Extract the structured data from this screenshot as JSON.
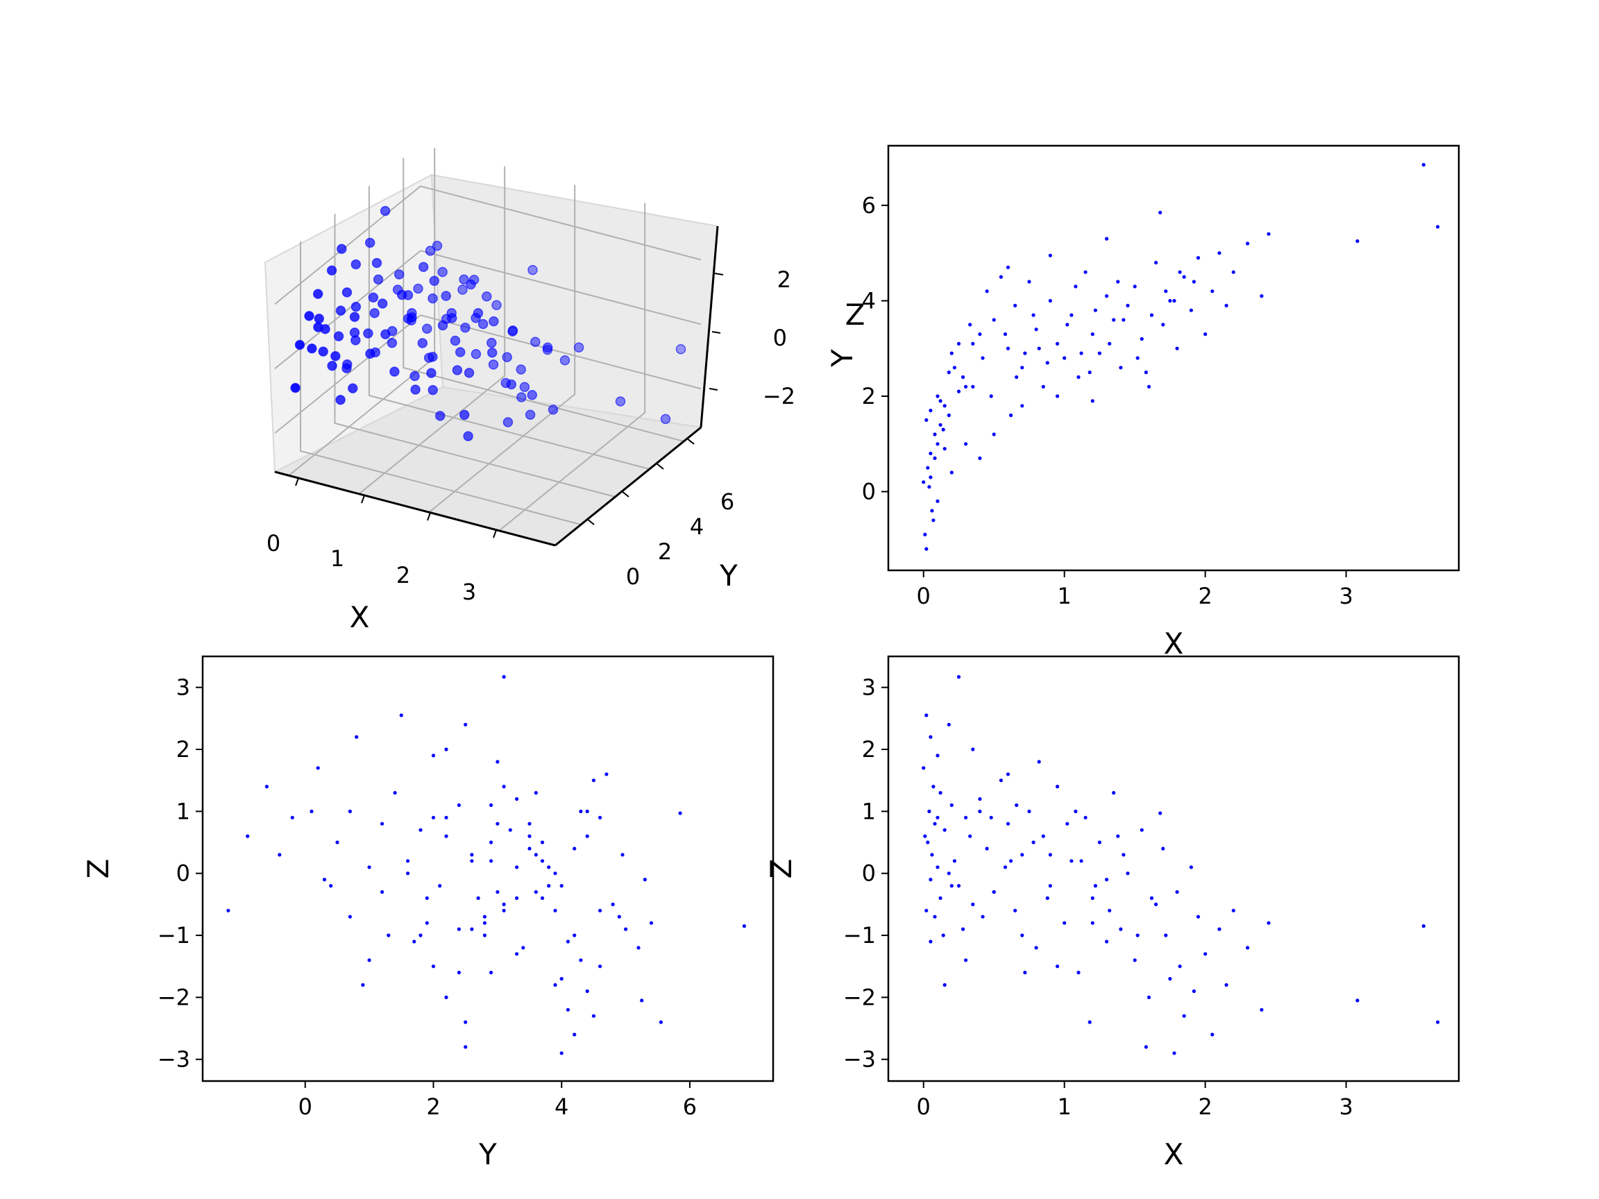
{
  "figure": {
    "marker_color": "#0000ff",
    "axis_color": "#000000",
    "pane_color": "#f2f2f2",
    "grid_color": "#b0b0b0"
  },
  "chart_data": [
    {
      "id": "scatter3d",
      "type": "scatter",
      "projection": "3d",
      "xlabel": "X",
      "ylabel": "Y",
      "zlabel": "Z",
      "xticks": [
        "0",
        "1",
        "2",
        "3"
      ],
      "yticks": [
        "0",
        "2",
        "4",
        "6"
      ],
      "zticks": [
        "−2",
        "0",
        "2"
      ],
      "xlim": [
        -0.2,
        3.8
      ],
      "ylim": [
        -1.5,
        7.0
      ],
      "zlim": [
        -3.2,
        3.3
      ],
      "grid": true,
      "series": [
        {
          "source": "points3d"
        }
      ]
    },
    {
      "id": "xy",
      "type": "scatter",
      "xlabel": "X",
      "ylabel": "Y",
      "xticks": [
        0,
        1,
        2,
        3
      ],
      "yticks": [
        0,
        2,
        4,
        6
      ],
      "xlim": [
        -0.25,
        3.8
      ],
      "ylim": [
        -1.65,
        7.25
      ],
      "grid": false,
      "series": [
        {
          "source": "points3d",
          "x": "x",
          "y": "y"
        }
      ]
    },
    {
      "id": "yz",
      "type": "scatter",
      "xlabel": "Y",
      "ylabel": "Z",
      "xticks": [
        0,
        2,
        4,
        6
      ],
      "yticks": [
        -3,
        -2,
        -1,
        0,
        1,
        2,
        3
      ],
      "xlim": [
        -1.6,
        7.3
      ],
      "ylim": [
        -3.35,
        3.5
      ],
      "grid": false,
      "series": [
        {
          "source": "points3d",
          "x": "y",
          "y": "z"
        }
      ]
    },
    {
      "id": "xz",
      "type": "scatter",
      "xlabel": "X",
      "ylabel": "Z",
      "xticks": [
        0,
        1,
        2,
        3
      ],
      "yticks": [
        -3,
        -2,
        -1,
        0,
        1,
        2,
        3
      ],
      "xlim": [
        -0.25,
        3.8
      ],
      "ylim": [
        -3.35,
        3.5
      ],
      "grid": false,
      "series": [
        {
          "source": "points3d",
          "x": "x",
          "y": "z"
        }
      ]
    }
  ],
  "points3d": [
    [
      0.02,
      1.5,
      2.55
    ],
    [
      0.05,
      0.8,
      2.2
    ],
    [
      0.1,
      2.0,
      1.9
    ],
    [
      0.0,
      0.2,
      1.7
    ],
    [
      0.12,
      1.4,
      1.3
    ],
    [
      0.2,
      2.9,
      1.1
    ],
    [
      0.04,
      0.1,
      1.0
    ],
    [
      0.3,
      2.2,
      0.9
    ],
    [
      0.08,
      1.2,
      0.8
    ],
    [
      0.15,
      1.8,
      0.7
    ],
    [
      0.01,
      -0.9,
      0.6
    ],
    [
      0.03,
      0.5,
      0.5
    ],
    [
      0.06,
      -0.4,
      0.3
    ],
    [
      0.22,
      2.6,
      0.2
    ],
    [
      0.1,
      1.0,
      0.1
    ],
    [
      0.18,
      1.6,
      0.0
    ],
    [
      0.05,
      0.3,
      -0.1
    ],
    [
      0.25,
      2.1,
      -0.2
    ],
    [
      0.12,
      1.9,
      -0.4
    ],
    [
      0.35,
      3.1,
      -0.5
    ],
    [
      0.02,
      -1.2,
      -0.6
    ],
    [
      0.08,
      0.7,
      -0.7
    ],
    [
      0.28,
      2.4,
      -0.9
    ],
    [
      0.14,
      1.3,
      -1.0
    ],
    [
      0.4,
      3.3,
      1.2
    ],
    [
      0.45,
      4.2,
      0.4
    ],
    [
      0.5,
      3.6,
      -0.3
    ],
    [
      0.55,
      4.5,
      1.5
    ],
    [
      0.6,
      3.0,
      0.8
    ],
    [
      0.65,
      3.9,
      -0.6
    ],
    [
      0.7,
      2.6,
      0.3
    ],
    [
      0.75,
      4.4,
      1.0
    ],
    [
      0.8,
      3.4,
      -1.2
    ],
    [
      0.85,
      2.2,
      0.6
    ],
    [
      0.9,
      4.0,
      -0.2
    ],
    [
      0.95,
      3.1,
      1.4
    ],
    [
      1.0,
      2.8,
      -0.8
    ],
    [
      1.05,
      3.7,
      0.2
    ],
    [
      1.1,
      2.4,
      -1.6
    ],
    [
      1.15,
      4.6,
      0.9
    ],
    [
      1.2,
      3.3,
      -0.4
    ],
    [
      1.25,
      2.9,
      0.5
    ],
    [
      1.3,
      4.1,
      -1.1
    ],
    [
      1.35,
      3.6,
      1.3
    ],
    [
      1.4,
      2.6,
      -0.9
    ],
    [
      1.45,
      3.9,
      0.0
    ],
    [
      1.5,
      4.3,
      -1.4
    ],
    [
      1.55,
      3.2,
      0.7
    ],
    [
      1.6,
      2.2,
      -2.0
    ],
    [
      1.65,
      4.8,
      -0.5
    ],
    [
      1.7,
      3.5,
      0.4
    ],
    [
      1.75,
      4.0,
      -1.7
    ],
    [
      1.8,
      3.0,
      -0.3
    ],
    [
      1.85,
      4.5,
      -2.3
    ],
    [
      1.9,
      3.8,
      0.1
    ],
    [
      1.95,
      4.9,
      -0.7
    ],
    [
      2.0,
      3.3,
      -1.3
    ],
    [
      2.05,
      4.2,
      -2.6
    ],
    [
      2.1,
      5.0,
      -0.9
    ],
    [
      2.15,
      3.9,
      -1.8
    ],
    [
      2.2,
      4.6,
      -0.6
    ],
    [
      2.3,
      5.2,
      -1.2
    ],
    [
      2.4,
      4.1,
      -2.2
    ],
    [
      2.45,
      5.4,
      -0.8
    ],
    [
      1.68,
      5.85,
      0.97
    ],
    [
      1.3,
      5.3,
      -0.1
    ],
    [
      0.9,
      4.95,
      0.3
    ],
    [
      0.6,
      4.7,
      1.6
    ],
    [
      3.08,
      5.25,
      -2.05
    ],
    [
      3.55,
      6.85,
      -0.85
    ],
    [
      3.65,
      5.55,
      -2.4
    ],
    [
      0.25,
      3.1,
      3.17
    ],
    [
      0.35,
      2.2,
      2.0
    ],
    [
      0.18,
      2.5,
      2.4
    ],
    [
      0.7,
      1.8,
      -1.0
    ],
    [
      0.5,
      1.2,
      -0.3
    ],
    [
      0.95,
      2.0,
      -1.5
    ],
    [
      1.2,
      1.9,
      -0.8
    ],
    [
      0.4,
      0.7,
      1.0
    ],
    [
      0.3,
      1.0,
      -1.4
    ],
    [
      0.2,
      0.4,
      -0.2
    ],
    [
      0.15,
      0.9,
      -1.8
    ],
    [
      0.1,
      -0.2,
      0.9
    ],
    [
      0.07,
      -0.6,
      1.4
    ],
    [
      0.05,
      1.7,
      -1.1
    ],
    [
      0.33,
      3.5,
      0.6
    ],
    [
      0.42,
      2.8,
      -0.7
    ],
    [
      0.58,
      3.3,
      0.1
    ],
    [
      0.66,
      2.4,
      1.1
    ],
    [
      0.78,
      3.7,
      0.5
    ],
    [
      0.88,
      2.7,
      -0.4
    ],
    [
      1.02,
      3.5,
      0.8
    ],
    [
      1.12,
      2.9,
      0.2
    ],
    [
      1.22,
      3.8,
      -0.2
    ],
    [
      1.32,
      3.1,
      -0.6
    ],
    [
      1.42,
      3.6,
      0.3
    ],
    [
      1.52,
      2.8,
      -1.0
    ],
    [
      1.62,
      3.7,
      -0.4
    ],
    [
      1.72,
      4.2,
      -1.0
    ],
    [
      1.82,
      4.6,
      -1.5
    ],
    [
      0.48,
      2.0,
      0.9
    ],
    [
      0.62,
      1.6,
      0.2
    ],
    [
      0.72,
      2.9,
      -1.6
    ],
    [
      0.82,
      3.0,
      1.8
    ],
    [
      1.08,
      4.3,
      1.0
    ],
    [
      1.18,
      2.5,
      -2.4
    ],
    [
      1.38,
      4.4,
      0.6
    ],
    [
      1.58,
      2.5,
      -2.8
    ],
    [
      1.78,
      4.0,
      -2.9
    ],
    [
      1.92,
      4.4,
      -1.9
    ]
  ]
}
